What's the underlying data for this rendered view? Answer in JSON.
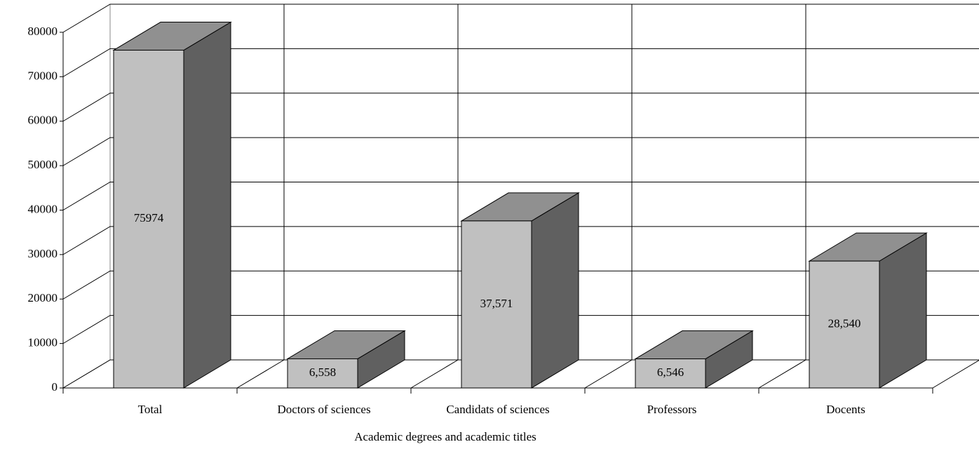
{
  "chart_data": {
    "type": "bar3d",
    "x_label": "Academic degrees and academic titles",
    "categories": [
      "Total",
      "Doctors of sciences",
      "Candidats of sciences",
      "Professors",
      "Docents"
    ],
    "values": [
      75974,
      6558,
      37571,
      6546,
      28540
    ],
    "value_labels": [
      "75974",
      "6,558",
      "37,571",
      "6,546",
      "28,540"
    ],
    "colors": {
      "front": "#c0c0c0",
      "top": "#909090",
      "side": "#606060"
    },
    "ylim": [
      0,
      80000
    ],
    "yticks": [
      0,
      10000,
      20000,
      30000,
      40000,
      50000,
      60000,
      70000,
      80000
    ],
    "grid": true
  }
}
